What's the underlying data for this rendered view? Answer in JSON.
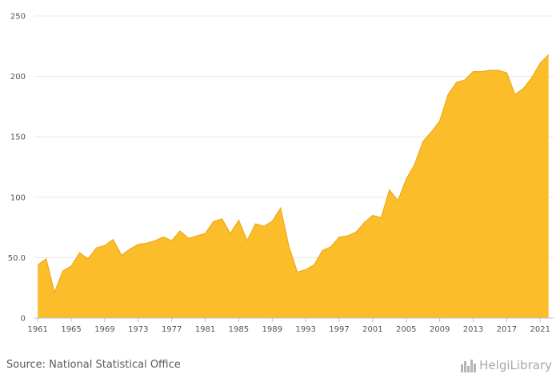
{
  "chart_data": {
    "type": "area",
    "x": [
      1961,
      1962,
      1963,
      1964,
      1965,
      1966,
      1967,
      1968,
      1969,
      1970,
      1971,
      1972,
      1973,
      1974,
      1975,
      1976,
      1977,
      1978,
      1979,
      1980,
      1981,
      1982,
      1983,
      1984,
      1985,
      1986,
      1987,
      1988,
      1989,
      1990,
      1991,
      1992,
      1993,
      1994,
      1995,
      1996,
      1997,
      1998,
      1999,
      2000,
      2001,
      2002,
      2003,
      2004,
      2005,
      2006,
      2007,
      2008,
      2009,
      2010,
      2011,
      2012,
      2013,
      2014,
      2015,
      2016,
      2017,
      2018,
      2019,
      2020,
      2021,
      2022
    ],
    "values": [
      44,
      49,
      21,
      39,
      43,
      54,
      49,
      58,
      60,
      65,
      52,
      57,
      61,
      62,
      64,
      67,
      64,
      72,
      66,
      68,
      70,
      80,
      82,
      70,
      81,
      64,
      78,
      76,
      80,
      91,
      59,
      38,
      40,
      44,
      56,
      59,
      67,
      68,
      71,
      79,
      85,
      83,
      106,
      97,
      115,
      127,
      146,
      154,
      163,
      185,
      195,
      197,
      204,
      204,
      205,
      205,
      203,
      185,
      190,
      199,
      211,
      218
    ],
    "xticks": [
      "1961",
      "1965",
      "1969",
      "1973",
      "1977",
      "1981",
      "1985",
      "1989",
      "1993",
      "1997",
      "2001",
      "2005",
      "2009",
      "2013",
      "2017",
      "2021"
    ],
    "yticks": [
      "0",
      "50.0",
      "100",
      "150",
      "200",
      "250"
    ],
    "ylim": [
      0,
      250
    ],
    "xlim": [
      1960.6,
      2022.6
    ],
    "grid": true,
    "color": "#fbbd29",
    "line_color": "#f0a91c",
    "grid_color": "#e8e8e8",
    "axis_color": "#c0c0c0",
    "xlabel": "",
    "ylabel": "",
    "title": ""
  },
  "footer": {
    "source": "Source: National Statistical Office",
    "brand": "HelgiLibrary",
    "brand_icon": "bar-building-logo-icon"
  }
}
